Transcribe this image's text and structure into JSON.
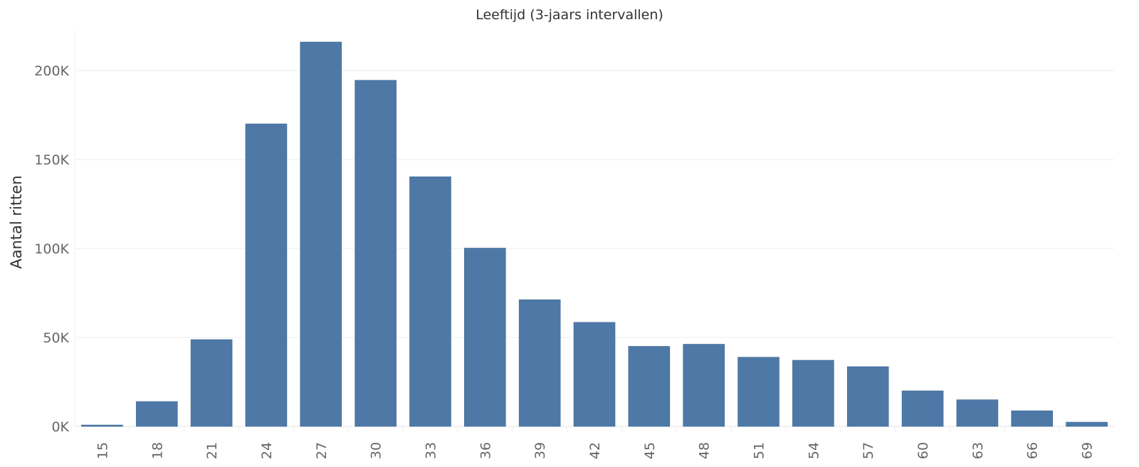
{
  "chart_data": {
    "type": "bar",
    "title": "Leeftijd (3-jaars intervallen)",
    "xlabel": "",
    "ylabel": "Aantal ritten",
    "categories": [
      "15",
      "18",
      "21",
      "24",
      "27",
      "30",
      "33",
      "36",
      "39",
      "42",
      "45",
      "48",
      "51",
      "54",
      "57",
      "60",
      "63",
      "66",
      "69"
    ],
    "values": [
      800,
      14000,
      48800,
      170000,
      216000,
      194500,
      140300,
      100200,
      71200,
      58500,
      45000,
      46200,
      38900,
      37200,
      33600,
      20000,
      15000,
      8800,
      2400
    ],
    "ylim": [
      0,
      225000
    ],
    "yticks": [
      0,
      50000,
      100000,
      150000,
      200000
    ],
    "ytick_labels": [
      "0K",
      "50K",
      "100K",
      "150K",
      "200K"
    ],
    "grid": true,
    "bar_color": "#4e79a7"
  }
}
